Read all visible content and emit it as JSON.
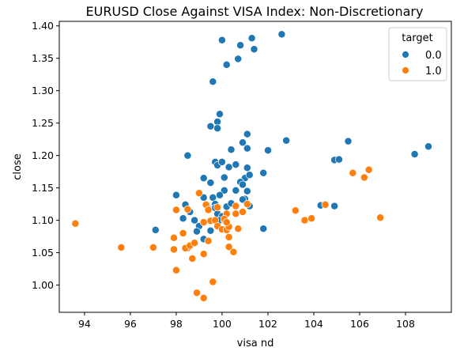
{
  "chart_data": {
    "type": "scatter",
    "title": "EURUSD Close Against VISA Index: Non-Discretionary",
    "xlabel": "visa nd",
    "ylabel": "close",
    "xlim": [
      92.9,
      110.0
    ],
    "ylim": [
      0.958,
      1.407
    ],
    "xticks": [
      94,
      96,
      98,
      100,
      102,
      104,
      106,
      108
    ],
    "yticks": [
      1.0,
      1.05,
      1.1,
      1.15,
      1.2,
      1.25,
      1.3,
      1.35,
      1.4
    ],
    "xtick_labels": [
      "94",
      "96",
      "98",
      "100",
      "102",
      "104",
      "106",
      "108"
    ],
    "ytick_labels": [
      "1.00",
      "1.05",
      "1.10",
      "1.15",
      "1.20",
      "1.25",
      "1.30",
      "1.35",
      "1.40"
    ],
    "grid": false,
    "legend": {
      "title": "target",
      "placement": "top-right",
      "entries": [
        {
          "label": "0.0",
          "color": "#1f77b4"
        },
        {
          "label": "1.0",
          "color": "#ff7f0e"
        }
      ]
    },
    "series": [
      {
        "name": "0.0",
        "color": "#1f77b4",
        "points": [
          [
            100.0,
            1.378
          ],
          [
            101.3,
            1.381
          ],
          [
            102.6,
            1.387
          ],
          [
            100.8,
            1.37
          ],
          [
            101.4,
            1.364
          ],
          [
            100.7,
            1.349
          ],
          [
            100.2,
            1.34
          ],
          [
            99.6,
            1.314
          ],
          [
            99.9,
            1.264
          ],
          [
            99.8,
            1.252
          ],
          [
            99.5,
            1.245
          ],
          [
            99.8,
            1.242
          ],
          [
            101.1,
            1.233
          ],
          [
            100.9,
            1.22
          ],
          [
            101.1,
            1.211
          ],
          [
            100.4,
            1.209
          ],
          [
            102.0,
            1.208
          ],
          [
            102.8,
            1.223
          ],
          [
            98.5,
            1.2
          ],
          [
            99.7,
            1.19
          ],
          [
            99.8,
            1.185
          ],
          [
            100.0,
            1.19
          ],
          [
            100.3,
            1.182
          ],
          [
            100.6,
            1.186
          ],
          [
            101.1,
            1.181
          ],
          [
            101.8,
            1.173
          ],
          [
            99.2,
            1.165
          ],
          [
            100.1,
            1.166
          ],
          [
            101.0,
            1.165
          ],
          [
            101.2,
            1.17
          ],
          [
            99.5,
            1.158
          ],
          [
            100.8,
            1.159
          ],
          [
            100.9,
            1.155
          ],
          [
            101.1,
            1.145
          ],
          [
            100.6,
            1.146
          ],
          [
            100.1,
            1.146
          ],
          [
            99.6,
            1.135
          ],
          [
            99.9,
            1.139
          ],
          [
            99.2,
            1.135
          ],
          [
            98.0,
            1.139
          ],
          [
            99.7,
            1.125
          ],
          [
            100.2,
            1.121
          ],
          [
            100.4,
            1.126
          ],
          [
            101.0,
            1.133
          ],
          [
            100.9,
            1.132
          ],
          [
            101.2,
            1.122
          ],
          [
            98.4,
            1.124
          ],
          [
            98.6,
            1.113
          ],
          [
            99.7,
            1.119
          ],
          [
            99.4,
            1.118
          ],
          [
            99.8,
            1.11
          ],
          [
            100.0,
            1.106
          ],
          [
            99.9,
            1.1
          ],
          [
            98.3,
            1.103
          ],
          [
            98.8,
            1.1
          ],
          [
            97.1,
            1.085
          ],
          [
            99.0,
            1.091
          ],
          [
            98.9,
            1.083
          ],
          [
            99.5,
            1.084
          ],
          [
            99.2,
            1.071
          ],
          [
            101.8,
            1.087
          ],
          [
            104.3,
            1.123
          ],
          [
            104.9,
            1.122
          ],
          [
            104.9,
            1.193
          ],
          [
            105.1,
            1.194
          ],
          [
            105.5,
            1.222
          ],
          [
            108.4,
            1.202
          ],
          [
            109.0,
            1.214
          ]
        ]
      },
      {
        "name": "1.0",
        "color": "#ff7f0e",
        "points": [
          [
            93.6,
            1.095
          ],
          [
            95.6,
            1.058
          ],
          [
            97.0,
            1.058
          ],
          [
            98.0,
            1.023
          ],
          [
            97.9,
            1.073
          ],
          [
            98.0,
            1.116
          ],
          [
            97.9,
            1.055
          ],
          [
            98.3,
            1.08
          ],
          [
            98.5,
            1.057
          ],
          [
            98.4,
            1.057
          ],
          [
            98.6,
            1.061
          ],
          [
            98.7,
            1.041
          ],
          [
            98.8,
            1.065
          ],
          [
            98.9,
            0.988
          ],
          [
            99.2,
            0.98
          ],
          [
            99.2,
            1.048
          ],
          [
            99.4,
            1.068
          ],
          [
            99.5,
            1.099
          ],
          [
            99.6,
            1.005
          ],
          [
            99.7,
            1.1
          ],
          [
            99.0,
            1.142
          ],
          [
            99.3,
            1.124
          ],
          [
            99.4,
            1.116
          ],
          [
            98.5,
            1.117
          ],
          [
            99.2,
            1.097
          ],
          [
            99.8,
            1.12
          ],
          [
            99.8,
            1.091
          ],
          [
            100.0,
            1.086
          ],
          [
            100.2,
            1.085
          ],
          [
            100.1,
            1.1
          ],
          [
            100.3,
            1.09
          ],
          [
            100.2,
            1.11
          ],
          [
            100.1,
            1.102
          ],
          [
            100.3,
            1.074
          ],
          [
            100.3,
            1.059
          ],
          [
            100.5,
            1.051
          ],
          [
            100.6,
            1.11
          ],
          [
            100.6,
            1.122
          ],
          [
            100.7,
            1.087
          ],
          [
            100.9,
            1.113
          ],
          [
            101.1,
            1.125
          ],
          [
            100.2,
            1.097
          ],
          [
            103.2,
            1.115
          ],
          [
            103.6,
            1.1
          ],
          [
            103.9,
            1.103
          ],
          [
            104.5,
            1.124
          ],
          [
            105.7,
            1.173
          ],
          [
            106.2,
            1.166
          ],
          [
            106.4,
            1.178
          ],
          [
            106.9,
            1.104
          ]
        ]
      }
    ]
  }
}
